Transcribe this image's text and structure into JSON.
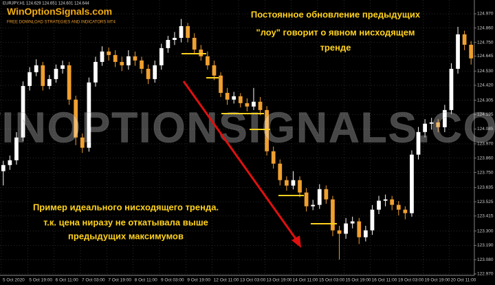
{
  "chart_data": {
    "type": "candlestick",
    "symbol_info": "EURJPY,H1 124.629 124.651 124.601 124.644",
    "logo": "WinOptionSignals.com",
    "logo_subtitle": "FREE DOWNLOAD STRATEGIES AND INDICATORS MT4",
    "watermark": "WINOPTIONSIGNALS.COM",
    "annotations": [
      [
        "Постоянное обновление предыдущих",
        "\"лоу\" говорит о явном нисходящем",
        "тренде"
      ],
      [
        "Пример идеального нисходящего тренда.",
        "т.к. цена ниразу не откатывала выше",
        "предыдущих максимумов"
      ]
    ],
    "x_labels": [
      "5 Oct 2020",
      "5 Oct 19:00",
      "6 Oct 11:00",
      "7 Oct 03:00",
      "7 Oct 19:00",
      "8 Oct 11:00",
      "9 Oct 03:00",
      "9 Oct 19:00",
      "12 Oct 11:00",
      "13 Oct 03:00",
      "13 Oct 19:00",
      "14 Oct 11:00",
      "15 Oct 03:00",
      "15 Oct 19:00",
      "16 Oct 11:00",
      "19 Oct 03:00",
      "19 Oct 19:00",
      "20 Oct 11:00"
    ],
    "open": [
      123.76,
      123.807,
      123.844,
      124.019,
      124.415,
      124.521,
      124.574,
      124.415,
      124.468,
      124.547,
      124.574,
      124.31,
      124.019,
      123.94,
      124.442,
      124.6,
      124.68,
      124.653,
      124.6,
      124.574,
      124.643,
      124.611,
      124.547,
      124.468,
      124.574,
      124.706,
      124.769,
      124.785,
      124.875,
      124.785,
      124.695,
      124.643,
      124.574,
      124.495,
      124.362,
      124.31,
      124.336,
      124.283,
      124.257,
      124.294,
      124.23,
      123.913,
      123.818,
      123.691,
      123.649,
      123.691,
      123.596,
      123.49,
      123.501,
      123.622,
      123.543,
      123.305,
      123.279,
      123.358,
      123.374,
      123.252,
      123.305,
      123.464,
      123.533,
      123.543,
      123.501,
      123.464,
      123.437,
      123.887,
      124.061,
      124.125,
      124.135,
      124.098,
      124.23,
      124.547,
      124.812,
      124.732
    ],
    "high": [
      123.84,
      123.88,
      124.06,
      124.45,
      124.56,
      124.62,
      124.6,
      124.5,
      124.58,
      124.61,
      124.6,
      124.34,
      124.05,
      124.48,
      124.64,
      124.72,
      124.71,
      124.69,
      124.64,
      124.69,
      124.68,
      124.64,
      124.58,
      124.61,
      124.74,
      124.8,
      124.83,
      124.93,
      124.9,
      124.82,
      124.73,
      124.68,
      124.61,
      124.52,
      124.4,
      124.37,
      124.36,
      124.32,
      124.4,
      124.33,
      124.26,
      123.95,
      123.85,
      123.72,
      123.76,
      123.72,
      123.63,
      123.54,
      123.66,
      123.65,
      123.57,
      123.34,
      123.4,
      123.41,
      123.4,
      123.34,
      123.5,
      123.57,
      123.58,
      123.57,
      123.53,
      123.49,
      123.92,
      124.1,
      124.16,
      124.17,
      124.16,
      124.27,
      124.59,
      124.87,
      124.84,
      124.76
    ],
    "low": [
      123.65,
      123.77,
      123.81,
      123.99,
      124.38,
      124.49,
      124.38,
      124.39,
      124.44,
      124.51,
      124.27,
      123.96,
      123.9,
      123.91,
      124.41,
      124.57,
      124.61,
      124.56,
      124.53,
      124.54,
      124.57,
      124.51,
      124.43,
      124.44,
      124.54,
      124.67,
      124.73,
      124.75,
      124.75,
      124.66,
      124.61,
      124.54,
      124.46,
      124.33,
      124.27,
      124.28,
      124.25,
      124.22,
      124.23,
      124.19,
      123.88,
      123.78,
      123.65,
      123.61,
      123.62,
      123.56,
      123.45,
      123.46,
      123.47,
      123.51,
      123.26,
      123.08,
      123.24,
      123.32,
      123.2,
      123.22,
      123.27,
      123.43,
      123.49,
      123.46,
      123.42,
      123.39,
      123.41,
      123.85,
      124.02,
      124.08,
      124.06,
      124.06,
      124.2,
      124.51,
      124.69,
      124.58
    ],
    "close": [
      123.807,
      123.844,
      124.019,
      124.415,
      124.521,
      124.574,
      124.415,
      124.468,
      124.547,
      124.574,
      124.31,
      124.019,
      123.94,
      124.442,
      124.6,
      124.68,
      124.653,
      124.6,
      124.574,
      124.643,
      124.611,
      124.547,
      124.468,
      124.574,
      124.706,
      124.769,
      124.785,
      124.875,
      124.785,
      124.695,
      124.643,
      124.574,
      124.495,
      124.362,
      124.31,
      124.336,
      124.283,
      124.257,
      124.294,
      124.23,
      123.913,
      123.818,
      123.691,
      123.649,
      123.691,
      123.596,
      123.49,
      123.501,
      123.622,
      123.543,
      123.305,
      123.279,
      123.358,
      123.374,
      123.252,
      123.305,
      123.464,
      123.533,
      123.543,
      123.501,
      123.464,
      123.437,
      123.887,
      124.061,
      124.125,
      124.135,
      124.098,
      124.23,
      124.547,
      124.812,
      124.732,
      124.627
    ],
    "up_color": "#ffffff",
    "down_color": "#f0a030",
    "ylim": [
      122.959,
      125.076
    ],
    "yticks": [
      {
        "value": 124.97,
        "label": "124.970"
      },
      {
        "value": 124.86,
        "label": "124.860"
      },
      {
        "value": 124.75,
        "label": "124.750"
      },
      {
        "value": 124.645,
        "label": "124.645"
      },
      {
        "value": 124.53,
        "label": "124.530"
      },
      {
        "value": 124.42,
        "label": "124.420"
      },
      {
        "value": 124.305,
        "label": "124.305"
      },
      {
        "value": 124.195,
        "label": "124.195"
      },
      {
        "value": 124.085,
        "label": "124.085"
      },
      {
        "value": 123.97,
        "label": "123.970"
      },
      {
        "value": 123.86,
        "label": "123.860"
      },
      {
        "value": 123.75,
        "label": "123.750"
      },
      {
        "value": 123.635,
        "label": "123.635"
      },
      {
        "value": 123.525,
        "label": "123.525"
      },
      {
        "value": 123.415,
        "label": "123.415"
      },
      {
        "value": 123.3,
        "label": "123.300"
      },
      {
        "value": 123.19,
        "label": "123.190"
      },
      {
        "value": 123.08,
        "label": "123.080"
      },
      {
        "value": 122.97,
        "label": "122.970"
      }
    ],
    "grid": true
  }
}
